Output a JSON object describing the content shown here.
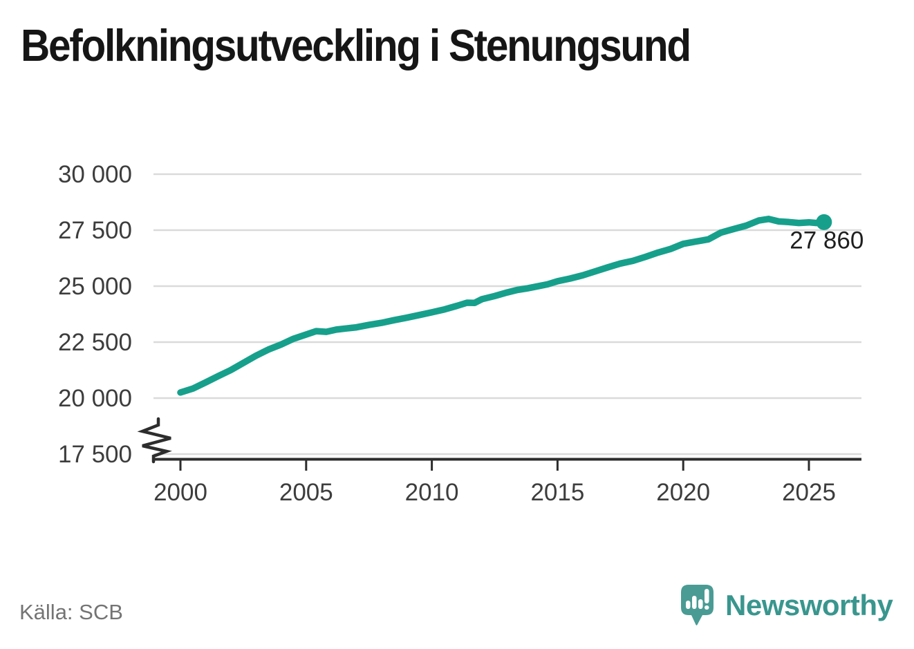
{
  "title": "Befolkningsutveckling i Stenungsund",
  "source": "Källa: SCB",
  "branding": {
    "logo_text": "Newsworthy",
    "logo_icon": "newsworthy-speech-bubble-bar-chart-icon"
  },
  "colors": {
    "line": "#16a08c",
    "grid": "#dadada",
    "axis": "#2d2d2d",
    "tick_label": "#3d3d3d",
    "title": "#161616",
    "end_label": "#1f1f1f",
    "source_text": "#747474",
    "logo_bubble": "#4a9b94",
    "logo_text_color": "#39968e"
  },
  "chart_data": {
    "type": "line",
    "title": "Befolkningsutveckling i Stenungsund",
    "xlabel": "",
    "ylabel": "",
    "x_tick_labels": [
      "2000",
      "2005",
      "2010",
      "2015",
      "2020",
      "2025"
    ],
    "x_tick_values": [
      2000,
      2005,
      2010,
      2015,
      2020,
      2025
    ],
    "y_tick_labels": [
      "30 000",
      "27 500",
      "25 000",
      "22 500",
      "20 000",
      "17 500"
    ],
    "y_tick_values": [
      30000,
      27500,
      25000,
      22500,
      20000,
      17500
    ],
    "xlim": [
      1998.9,
      2027.1
    ],
    "ylim": [
      17500,
      30000
    ],
    "axis_break": true,
    "grid": "horizontal",
    "legend_position": "none",
    "end_label": "27 860",
    "end_value": 27860,
    "series": [
      {
        "name": "Befolkning",
        "points": [
          [
            2000.0,
            20250
          ],
          [
            2000.5,
            20430
          ],
          [
            2001.0,
            20700
          ],
          [
            2001.5,
            20980
          ],
          [
            2002.0,
            21250
          ],
          [
            2002.5,
            21570
          ],
          [
            2003.0,
            21890
          ],
          [
            2003.5,
            22170
          ],
          [
            2004.0,
            22390
          ],
          [
            2004.5,
            22650
          ],
          [
            2005.0,
            22840
          ],
          [
            2005.4,
            22990
          ],
          [
            2005.8,
            22960
          ],
          [
            2006.2,
            23060
          ],
          [
            2006.6,
            23110
          ],
          [
            2007.0,
            23160
          ],
          [
            2007.5,
            23270
          ],
          [
            2008.0,
            23360
          ],
          [
            2008.5,
            23480
          ],
          [
            2009.0,
            23590
          ],
          [
            2009.5,
            23710
          ],
          [
            2010.0,
            23830
          ],
          [
            2010.5,
            23960
          ],
          [
            2011.0,
            24120
          ],
          [
            2011.4,
            24260
          ],
          [
            2011.7,
            24250
          ],
          [
            2012.0,
            24420
          ],
          [
            2012.5,
            24560
          ],
          [
            2013.0,
            24720
          ],
          [
            2013.4,
            24830
          ],
          [
            2013.8,
            24900
          ],
          [
            2014.2,
            24990
          ],
          [
            2014.6,
            25080
          ],
          [
            2015.0,
            25220
          ],
          [
            2015.5,
            25340
          ],
          [
            2016.0,
            25480
          ],
          [
            2016.5,
            25660
          ],
          [
            2017.0,
            25840
          ],
          [
            2017.5,
            26010
          ],
          [
            2018.0,
            26130
          ],
          [
            2018.5,
            26310
          ],
          [
            2019.0,
            26500
          ],
          [
            2019.5,
            26660
          ],
          [
            2020.0,
            26890
          ],
          [
            2020.5,
            26990
          ],
          [
            2021.0,
            27090
          ],
          [
            2021.5,
            27390
          ],
          [
            2022.0,
            27550
          ],
          [
            2022.5,
            27700
          ],
          [
            2023.0,
            27930
          ],
          [
            2023.4,
            28000
          ],
          [
            2023.8,
            27890
          ],
          [
            2024.2,
            27860
          ],
          [
            2024.6,
            27820
          ],
          [
            2025.0,
            27850
          ],
          [
            2025.3,
            27820
          ],
          [
            2025.6,
            27860
          ]
        ]
      }
    ]
  }
}
